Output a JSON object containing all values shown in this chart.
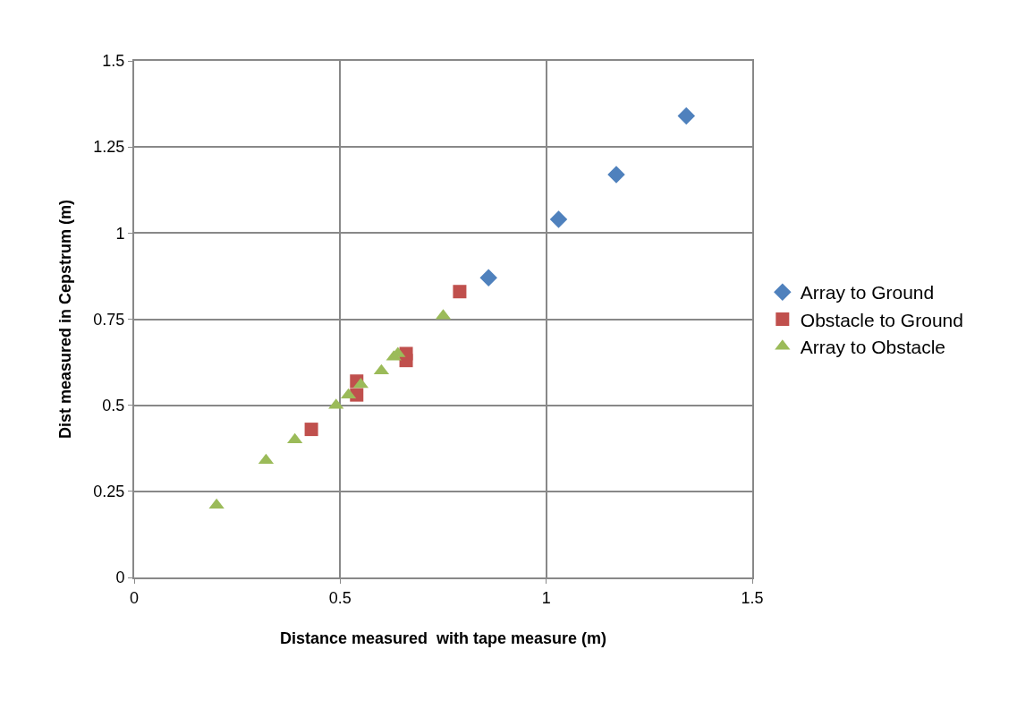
{
  "chart_data": {
    "type": "scatter",
    "xlabel": "Distance measured  with tape measure (m)",
    "ylabel": "Dist measured in Cepstrum (m)",
    "xlim": [
      0,
      1.5
    ],
    "xticks": [
      0,
      0.5,
      1,
      1.5
    ],
    "ylim": [
      0,
      1.5
    ],
    "yticks": [
      0,
      0.25,
      0.5,
      0.75,
      1,
      1.25,
      1.5
    ],
    "grid": true,
    "legend": "right",
    "series": [
      {
        "name": "Array to Ground",
        "color": "#4f81bd",
        "marker": "diamond",
        "x": [
          0.86,
          1.03,
          1.17,
          1.34
        ],
        "values": [
          0.87,
          1.04,
          1.17,
          1.34
        ]
      },
      {
        "name": "Obstacle to Ground",
        "color": "#c0504d",
        "marker": "square",
        "x": [
          0.43,
          0.54,
          0.54,
          0.66,
          0.66,
          0.79
        ],
        "values": [
          0.43,
          0.53,
          0.57,
          0.63,
          0.65,
          0.83
        ]
      },
      {
        "name": "Array to Obstacle",
        "color": "#9bbb59",
        "marker": "triangle",
        "x": [
          0.2,
          0.32,
          0.39,
          0.49,
          0.52,
          0.55,
          0.6,
          0.63,
          0.64,
          0.75
        ],
        "values": [
          0.21,
          0.34,
          0.4,
          0.5,
          0.53,
          0.56,
          0.6,
          0.64,
          0.65,
          0.76
        ]
      }
    ]
  }
}
